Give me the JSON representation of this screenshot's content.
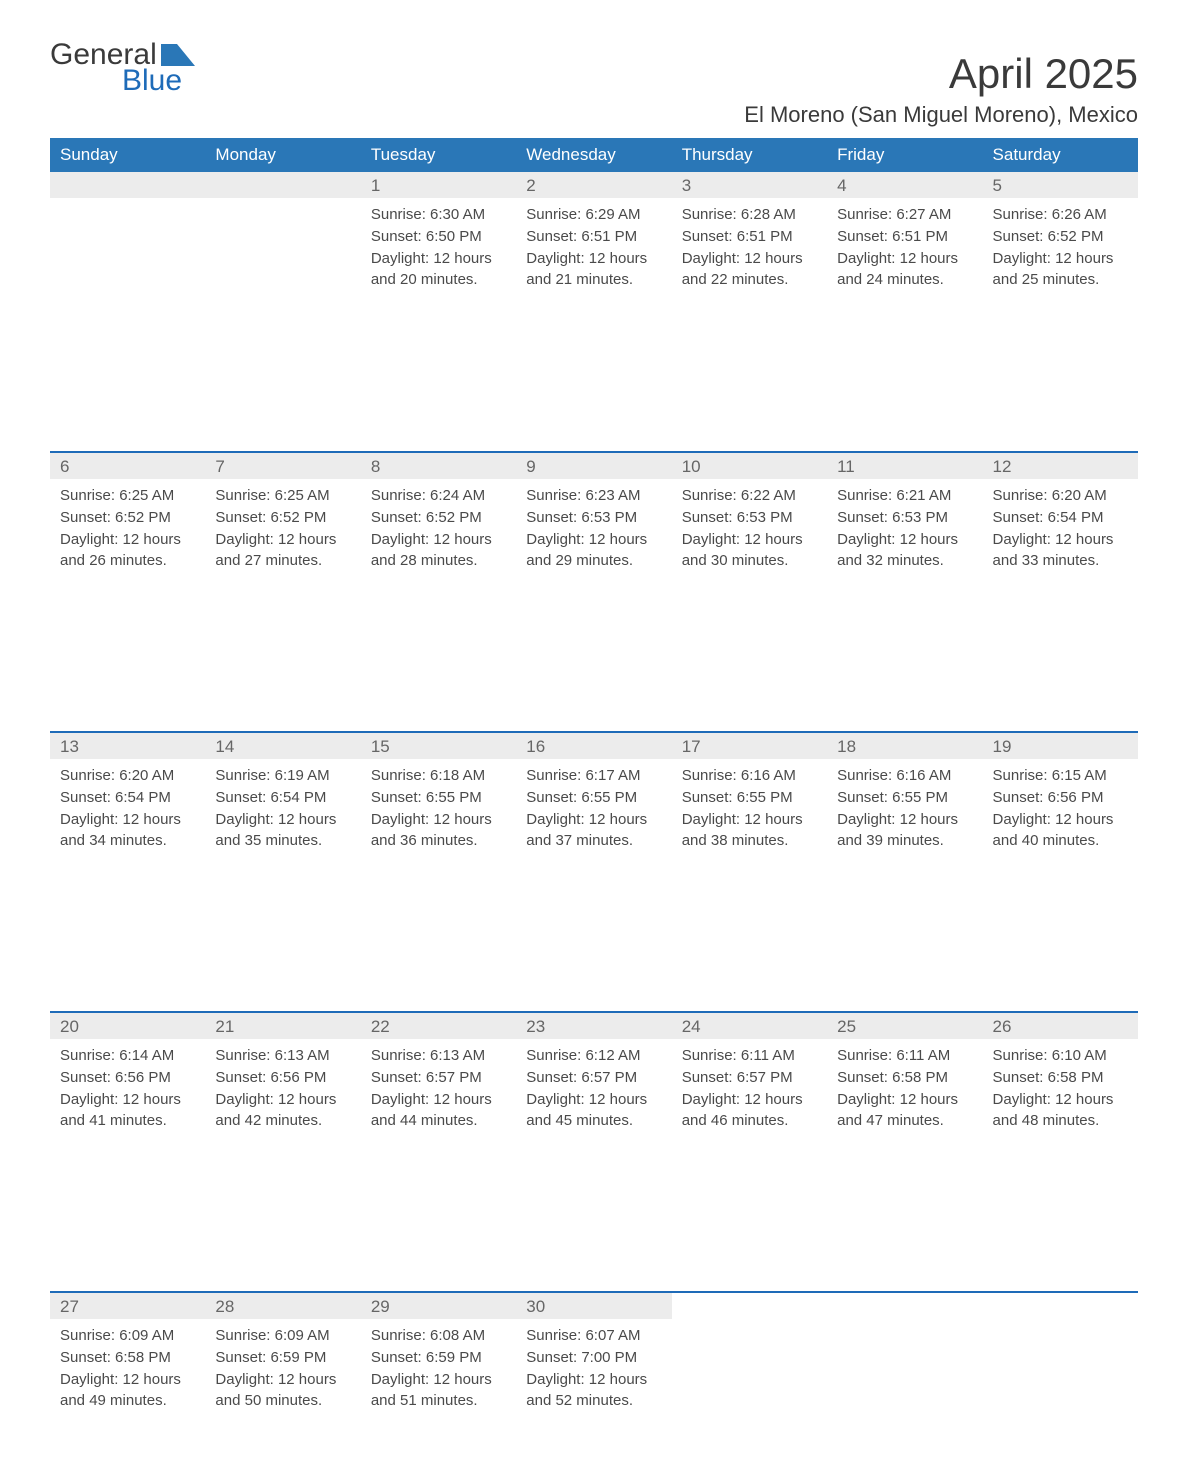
{
  "brand": {
    "word1": "General",
    "word2": "Blue"
  },
  "title": "April 2025",
  "location": "El Moreno (San Miguel Moreno), Mexico",
  "colors": {
    "header_blue": "#2a77b7",
    "accent_blue": "#1e6bb8",
    "light_gray": "#ececec",
    "text_gray": "#4a4a4a",
    "muted_gray": "#666666",
    "background": "#ffffff"
  },
  "calendar": {
    "type": "table",
    "columns": [
      "Sunday",
      "Monday",
      "Tuesday",
      "Wednesday",
      "Thursday",
      "Friday",
      "Saturday"
    ],
    "labels": {
      "sunrise": "Sunrise: ",
      "sunset": "Sunset: ",
      "daylight": "Daylight: "
    },
    "weeks": [
      [
        null,
        null,
        {
          "n": "1",
          "sr": "6:30 AM",
          "ss": "6:50 PM",
          "dl": "12 hours and 20 minutes."
        },
        {
          "n": "2",
          "sr": "6:29 AM",
          "ss": "6:51 PM",
          "dl": "12 hours and 21 minutes."
        },
        {
          "n": "3",
          "sr": "6:28 AM",
          "ss": "6:51 PM",
          "dl": "12 hours and 22 minutes."
        },
        {
          "n": "4",
          "sr": "6:27 AM",
          "ss": "6:51 PM",
          "dl": "12 hours and 24 minutes."
        },
        {
          "n": "5",
          "sr": "6:26 AM",
          "ss": "6:52 PM",
          "dl": "12 hours and 25 minutes."
        }
      ],
      [
        {
          "n": "6",
          "sr": "6:25 AM",
          "ss": "6:52 PM",
          "dl": "12 hours and 26 minutes."
        },
        {
          "n": "7",
          "sr": "6:25 AM",
          "ss": "6:52 PM",
          "dl": "12 hours and 27 minutes."
        },
        {
          "n": "8",
          "sr": "6:24 AM",
          "ss": "6:52 PM",
          "dl": "12 hours and 28 minutes."
        },
        {
          "n": "9",
          "sr": "6:23 AM",
          "ss": "6:53 PM",
          "dl": "12 hours and 29 minutes."
        },
        {
          "n": "10",
          "sr": "6:22 AM",
          "ss": "6:53 PM",
          "dl": "12 hours and 30 minutes."
        },
        {
          "n": "11",
          "sr": "6:21 AM",
          "ss": "6:53 PM",
          "dl": "12 hours and 32 minutes."
        },
        {
          "n": "12",
          "sr": "6:20 AM",
          "ss": "6:54 PM",
          "dl": "12 hours and 33 minutes."
        }
      ],
      [
        {
          "n": "13",
          "sr": "6:20 AM",
          "ss": "6:54 PM",
          "dl": "12 hours and 34 minutes."
        },
        {
          "n": "14",
          "sr": "6:19 AM",
          "ss": "6:54 PM",
          "dl": "12 hours and 35 minutes."
        },
        {
          "n": "15",
          "sr": "6:18 AM",
          "ss": "6:55 PM",
          "dl": "12 hours and 36 minutes."
        },
        {
          "n": "16",
          "sr": "6:17 AM",
          "ss": "6:55 PM",
          "dl": "12 hours and 37 minutes."
        },
        {
          "n": "17",
          "sr": "6:16 AM",
          "ss": "6:55 PM",
          "dl": "12 hours and 38 minutes."
        },
        {
          "n": "18",
          "sr": "6:16 AM",
          "ss": "6:55 PM",
          "dl": "12 hours and 39 minutes."
        },
        {
          "n": "19",
          "sr": "6:15 AM",
          "ss": "6:56 PM",
          "dl": "12 hours and 40 minutes."
        }
      ],
      [
        {
          "n": "20",
          "sr": "6:14 AM",
          "ss": "6:56 PM",
          "dl": "12 hours and 41 minutes."
        },
        {
          "n": "21",
          "sr": "6:13 AM",
          "ss": "6:56 PM",
          "dl": "12 hours and 42 minutes."
        },
        {
          "n": "22",
          "sr": "6:13 AM",
          "ss": "6:57 PM",
          "dl": "12 hours and 44 minutes."
        },
        {
          "n": "23",
          "sr": "6:12 AM",
          "ss": "6:57 PM",
          "dl": "12 hours and 45 minutes."
        },
        {
          "n": "24",
          "sr": "6:11 AM",
          "ss": "6:57 PM",
          "dl": "12 hours and 46 minutes."
        },
        {
          "n": "25",
          "sr": "6:11 AM",
          "ss": "6:58 PM",
          "dl": "12 hours and 47 minutes."
        },
        {
          "n": "26",
          "sr": "6:10 AM",
          "ss": "6:58 PM",
          "dl": "12 hours and 48 minutes."
        }
      ],
      [
        {
          "n": "27",
          "sr": "6:09 AM",
          "ss": "6:58 PM",
          "dl": "12 hours and 49 minutes."
        },
        {
          "n": "28",
          "sr": "6:09 AM",
          "ss": "6:59 PM",
          "dl": "12 hours and 50 minutes."
        },
        {
          "n": "29",
          "sr": "6:08 AM",
          "ss": "6:59 PM",
          "dl": "12 hours and 51 minutes."
        },
        {
          "n": "30",
          "sr": "6:07 AM",
          "ss": "7:00 PM",
          "dl": "12 hours and 52 minutes."
        },
        null,
        null,
        null
      ]
    ]
  }
}
